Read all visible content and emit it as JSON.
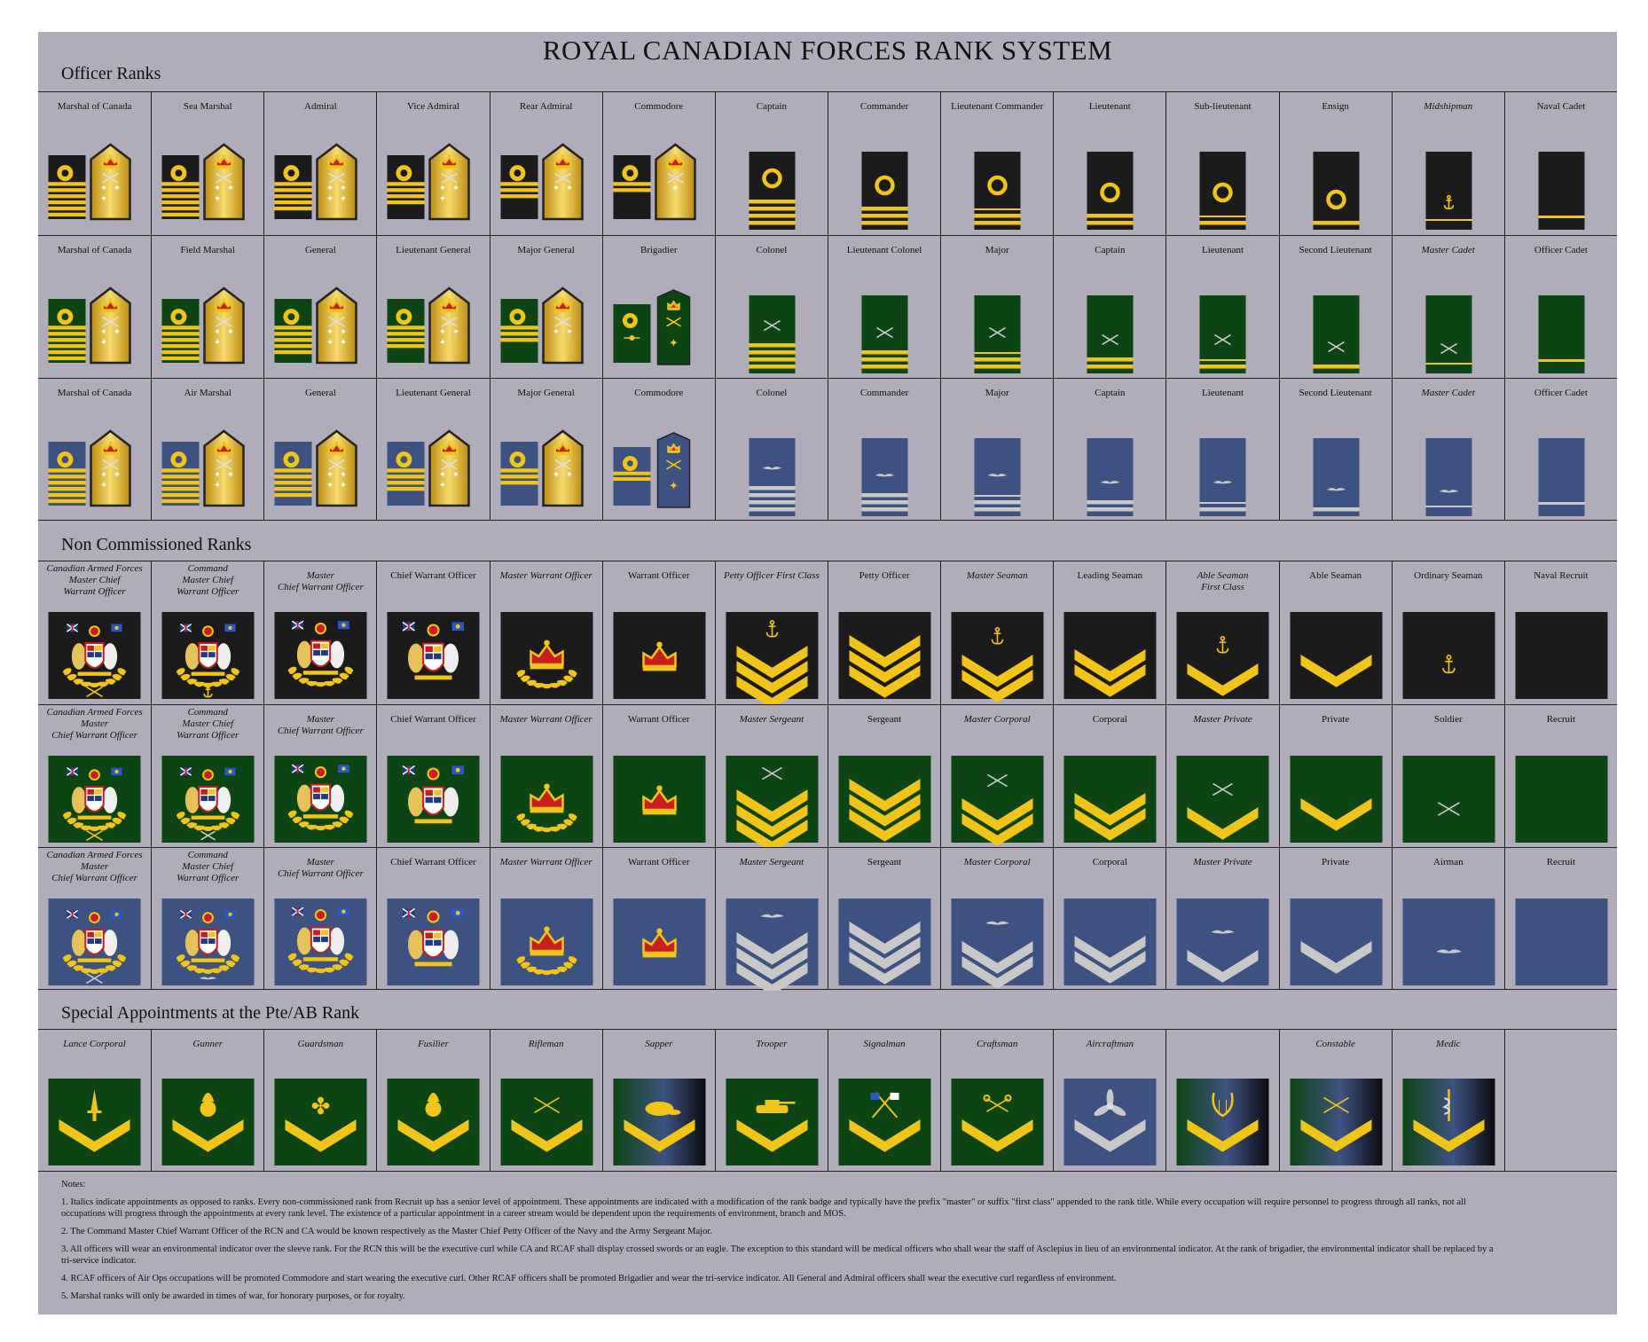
{
  "title": "ROYAL CANADIAN FORCES RANK SYSTEM",
  "colors": {
    "navy": "#1b1b1b",
    "army": "#0c4513",
    "air": "#3e5282",
    "gold": "#f0c419",
    "silver": "#c8c8c8",
    "sheet": "#b0acb9"
  },
  "sections": {
    "officer": "Officer Ranks",
    "nco": "Non Commissioned Ranks",
    "special": "Special Appointments at the Pte/AB Rank"
  },
  "officer_rows": [
    {
      "element": "navy",
      "ranks": [
        {
          "label": "Marshal of Canada",
          "badge": "marshal"
        },
        {
          "label": "Sea Marshal",
          "badge": "marshal"
        },
        {
          "label": "Admiral",
          "badge": "gen4"
        },
        {
          "label": "Vice Admiral",
          "badge": "gen3"
        },
        {
          "label": "Rear Admiral",
          "badge": "gen2"
        },
        {
          "label": "Commodore",
          "badge": "gen1"
        },
        {
          "label": "Captain",
          "badge": "curl4"
        },
        {
          "label": "Commander",
          "badge": "curl3"
        },
        {
          "label": "Lieutenant Commander",
          "badge": "curl2h"
        },
        {
          "label": "Lieutenant",
          "badge": "curl2"
        },
        {
          "label": "Sub-lieutenant",
          "badge": "curl1h"
        },
        {
          "label": "Ensign",
          "badge": "curl1"
        },
        {
          "label": "Midshipman",
          "badge": "cadetm",
          "italic": true
        },
        {
          "label": "Naval Cadet",
          "badge": "cadet"
        }
      ]
    },
    {
      "element": "army",
      "ranks": [
        {
          "label": "Marshal of Canada",
          "badge": "marshal"
        },
        {
          "label": "Field Marshal",
          "badge": "marshal"
        },
        {
          "label": "General",
          "badge": "gen4"
        },
        {
          "label": "Lieutenant General",
          "badge": "gen3"
        },
        {
          "label": "Major General",
          "badge": "gen2"
        },
        {
          "label": "Brigadier",
          "badge": "brig"
        },
        {
          "label": "Colonel",
          "badge": "bar4"
        },
        {
          "label": "Lieutenant Colonel",
          "badge": "bar3"
        },
        {
          "label": "Major",
          "badge": "bar2h"
        },
        {
          "label": "Captain",
          "badge": "bar2"
        },
        {
          "label": "Lieutenant",
          "badge": "bar1h"
        },
        {
          "label": "Second Lieutenant",
          "badge": "bar1"
        },
        {
          "label": "Master Cadet",
          "badge": "cadetm",
          "italic": true
        },
        {
          "label": "Officer Cadet",
          "badge": "cadet"
        }
      ]
    },
    {
      "element": "air",
      "ranks": [
        {
          "label": "Marshal of Canada",
          "badge": "marshal"
        },
        {
          "label": "Air Marshal",
          "badge": "marshal"
        },
        {
          "label": "General",
          "badge": "gen4"
        },
        {
          "label": "Lieutenant General",
          "badge": "gen3"
        },
        {
          "label": "Major General",
          "badge": "gen2"
        },
        {
          "label": "Commodore",
          "badge": "brig"
        },
        {
          "label": "Colonel",
          "badge": "bar4"
        },
        {
          "label": "Commander",
          "badge": "bar3"
        },
        {
          "label": "Major",
          "badge": "bar2h"
        },
        {
          "label": "Captain",
          "badge": "bar2"
        },
        {
          "label": "Lieutenant",
          "badge": "bar1h"
        },
        {
          "label": "Second Lieutenant",
          "badge": "bar1"
        },
        {
          "label": "Master Cadet",
          "badge": "cadetm",
          "italic": true
        },
        {
          "label": "Officer Cadet",
          "badge": "cadet"
        }
      ]
    }
  ],
  "nco_rows": [
    {
      "element": "navy",
      "ranks": [
        {
          "label": "Canadian Armed Forces\nMaster Chief\nWarrant Officer",
          "badge": "cafcwo",
          "italic": true
        },
        {
          "label": "Command\nMaster Chief\nWarrant Officer",
          "badge": "ccwo",
          "italic": true
        },
        {
          "label": "Master\nChief Warrant Officer",
          "badge": "mcwo",
          "italic": true
        },
        {
          "label": "Chief Warrant Officer",
          "badge": "cwo"
        },
        {
          "label": "Master Warrant Officer",
          "badge": "mwo",
          "italic": true
        },
        {
          "label": "Warrant Officer",
          "badge": "wo"
        },
        {
          "label": "Petty Officer First Class",
          "badge": "chev3x",
          "italic": true
        },
        {
          "label": "Petty Officer",
          "badge": "chev3"
        },
        {
          "label": "Master Seaman",
          "badge": "chev2x",
          "italic": true
        },
        {
          "label": "Leading Seaman",
          "badge": "chev2"
        },
        {
          "label": "Able Seaman\nFirst Class",
          "badge": "chev1x",
          "italic": true
        },
        {
          "label": "Able Seaman",
          "badge": "chev1"
        },
        {
          "label": "Ordinary Seaman",
          "badge": "emblem"
        },
        {
          "label": "Naval Recruit",
          "badge": "plain"
        }
      ]
    },
    {
      "element": "army",
      "ranks": [
        {
          "label": "Canadian Armed Forces\nMaster\nChief Warrant Officer",
          "badge": "cafcwo",
          "italic": true
        },
        {
          "label": "Command\nMaster Chief\nWarrant Officer",
          "badge": "ccwo",
          "italic": true
        },
        {
          "label": "Master\nChief Warrant Officer",
          "badge": "mcwo",
          "italic": true
        },
        {
          "label": "Chief Warrant Officer",
          "badge": "cwo"
        },
        {
          "label": "Master Warrant Officer",
          "badge": "mwo",
          "italic": true
        },
        {
          "label": "Warrant Officer",
          "badge": "wo"
        },
        {
          "label": "Master Sergeant",
          "badge": "chev3x",
          "italic": true
        },
        {
          "label": "Sergeant",
          "badge": "chev3"
        },
        {
          "label": "Master Corporal",
          "badge": "chev2x",
          "italic": true
        },
        {
          "label": "Corporal",
          "badge": "chev2"
        },
        {
          "label": "Master Private",
          "badge": "chev1x",
          "italic": true
        },
        {
          "label": "Private",
          "badge": "chev1"
        },
        {
          "label": "Soldier",
          "badge": "emblem"
        },
        {
          "label": "Recruit",
          "badge": "plain"
        }
      ]
    },
    {
      "element": "air",
      "ranks": [
        {
          "label": "Canadian Armed Forces\nMaster\nChief Warrant Officer",
          "badge": "cafcwo",
          "italic": true
        },
        {
          "label": "Command\nMaster Chief\nWarrant Officer",
          "badge": "ccwo",
          "italic": true
        },
        {
          "label": "Master\nChief Warrant Officer",
          "badge": "mcwo",
          "italic": true
        },
        {
          "label": "Chief Warrant Officer",
          "badge": "cwo"
        },
        {
          "label": "Master Warrant Officer",
          "badge": "mwo",
          "italic": true
        },
        {
          "label": "Warrant Officer",
          "badge": "wo"
        },
        {
          "label": "Master Sergeant",
          "badge": "chev3x",
          "italic": true
        },
        {
          "label": "Sergeant",
          "badge": "chev3"
        },
        {
          "label": "Master Corporal",
          "badge": "chev2x",
          "italic": true
        },
        {
          "label": "Corporal",
          "badge": "chev2"
        },
        {
          "label": "Master Private",
          "badge": "chev1x",
          "italic": true
        },
        {
          "label": "Private",
          "badge": "chev1"
        },
        {
          "label": "Airman",
          "badge": "emblem"
        },
        {
          "label": "Recruit",
          "badge": "plain"
        }
      ]
    }
  ],
  "special_row": [
    {
      "label": "Lance Corporal",
      "badge": "dagger",
      "bg": "army"
    },
    {
      "label": "Gunner",
      "badge": "grenade",
      "bg": "army"
    },
    {
      "label": "Guardsman",
      "badge": "maple",
      "bg": "army"
    },
    {
      "label": "Fusilier",
      "badge": "grenade",
      "bg": "army"
    },
    {
      "label": "Rifleman",
      "badge": "rifles",
      "bg": "army"
    },
    {
      "label": "Sapper",
      "badge": "beaver",
      "bg": "grad"
    },
    {
      "label": "Trooper",
      "badge": "tank",
      "bg": "army"
    },
    {
      "label": "Signalman",
      "badge": "flags",
      "bg": "army"
    },
    {
      "label": "Craftsman",
      "badge": "wrench",
      "bg": "army"
    },
    {
      "label": "Aircraftman",
      "badge": "propeller",
      "bg": "air"
    },
    {
      "label": "",
      "badge": "lyre",
      "bg": "grad"
    },
    {
      "label": "Constable",
      "badge": "pistols",
      "bg": "grad"
    },
    {
      "label": "Medic",
      "badge": "staff",
      "bg": "grad"
    },
    {
      "label": "",
      "badge": "none",
      "bg": "none"
    }
  ],
  "notes": {
    "heading": "Notes:",
    "items": [
      "1. Italics indicate appointments as opposed to ranks. Every non-commissioned rank from Recruit up has a senior level of appointment. These appointments are indicated with a modification of the rank badge and typically have the prefix \"master\" or suffix \"first class\" appended to the rank title. While every occupation will require personnel to progress through all ranks, not all occupations will progress through the appointments at every rank level. The existence of a particular appointment in a career stream would be dependent upon the requirements of environment, branch and MOS.",
      "2. The Command Master Chief Warrant Officer of the RCN and CA would be known respectively as the Master Chief Petty Officer of the Navy and the Army Sergeant Major.",
      "3. All officers will wear an environmental indicator over the sleeve rank. For the RCN this will be the executive curl while CA and RCAF shall display crossed swords or an eagle. The exception to this standard will be medical officers who shall wear the staff of Asclepius in lieu of an environmental indicator. At the rank of brigadier, the environmental indicator shall be replaced by a tri-service indicator.",
      "4. RCAF officers of Air Ops occupations will be promoted Commodore and start wearing the executive curl. Other RCAF officers shall be promoted Brigadier and wear the tri-service indicator. All General and Admiral officers shall wear the executive curl regardless of environment.",
      "5. Marshal ranks will only be awarded in times of war, for honorary purposes, or for royalty."
    ]
  }
}
